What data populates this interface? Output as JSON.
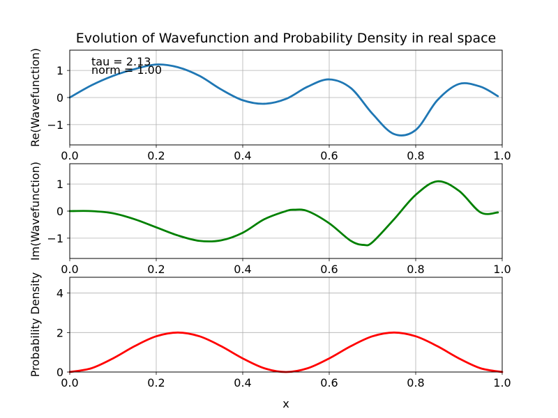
{
  "title": "Evolution of Wavefunction and Probability Density in real space",
  "chart_data": [
    {
      "type": "line",
      "ylabel": "Re(Wavefunction)",
      "xlabel": "",
      "xlim": [
        0.0,
        1.0
      ],
      "ylim": [
        -1.75,
        1.75
      ],
      "xticks": [
        "0.0",
        "0.2",
        "0.4",
        "0.6",
        "0.8",
        "1.0"
      ],
      "yticks": [
        "−1",
        "0",
        "1"
      ],
      "grid": true,
      "annotations": [
        "tau = 2.13",
        "norm = 1.00"
      ],
      "series": [
        {
          "color": "#1f77b4",
          "x": [
            0.0,
            0.05,
            0.1,
            0.15,
            0.2,
            0.25,
            0.3,
            0.35,
            0.4,
            0.45,
            0.5,
            0.55,
            0.6,
            0.65,
            0.7,
            0.75,
            0.8,
            0.85,
            0.9,
            0.95,
            0.99
          ],
          "y": [
            0.0,
            0.45,
            0.8,
            1.05,
            1.22,
            1.12,
            0.8,
            0.3,
            -0.1,
            -0.23,
            -0.05,
            0.4,
            0.67,
            0.35,
            -0.6,
            -1.35,
            -1.2,
            -0.1,
            0.5,
            0.4,
            0.05
          ]
        }
      ]
    },
    {
      "type": "line",
      "ylabel": "Im(Wavefunction)",
      "xlabel": "",
      "xlim": [
        0.0,
        1.0
      ],
      "ylim": [
        -1.75,
        1.75
      ],
      "xticks": [
        "0.0",
        "0.2",
        "0.4",
        "0.6",
        "0.8",
        "1.0"
      ],
      "yticks": [
        "−1",
        "0",
        "1"
      ],
      "grid": true,
      "series": [
        {
          "color": "#008000",
          "x": [
            0.0,
            0.05,
            0.1,
            0.15,
            0.2,
            0.25,
            0.3,
            0.35,
            0.4,
            0.45,
            0.5,
            0.52,
            0.55,
            0.6,
            0.65,
            0.68,
            0.7,
            0.75,
            0.8,
            0.85,
            0.9,
            0.95,
            0.99
          ],
          "y": [
            0.0,
            0.0,
            -0.08,
            -0.3,
            -0.6,
            -0.9,
            -1.1,
            -1.08,
            -0.8,
            -0.3,
            0.0,
            0.05,
            0.0,
            -0.45,
            -1.1,
            -1.25,
            -1.15,
            -0.3,
            0.6,
            1.1,
            0.75,
            -0.05,
            -0.05
          ]
        }
      ]
    },
    {
      "type": "line",
      "ylabel": "Probability Density",
      "xlabel": "x",
      "xlim": [
        0.0,
        1.0
      ],
      "ylim": [
        0.0,
        4.8
      ],
      "xticks": [
        "0.0",
        "0.2",
        "0.4",
        "0.6",
        "0.8",
        "1.0"
      ],
      "yticks": [
        "0",
        "2",
        "4"
      ],
      "grid": true,
      "series": [
        {
          "color": "#ff0000",
          "x": [
            0.0,
            0.05,
            0.1,
            0.15,
            0.2,
            0.25,
            0.3,
            0.35,
            0.4,
            0.45,
            0.5,
            0.55,
            0.6,
            0.65,
            0.7,
            0.75,
            0.8,
            0.85,
            0.9,
            0.95,
            1.0
          ],
          "y": [
            0.0,
            0.19,
            0.69,
            1.31,
            1.81,
            2.0,
            1.81,
            1.31,
            0.69,
            0.19,
            0.0,
            0.19,
            0.69,
            1.31,
            1.81,
            2.0,
            1.81,
            1.31,
            0.69,
            0.19,
            0.0
          ]
        }
      ]
    }
  ]
}
